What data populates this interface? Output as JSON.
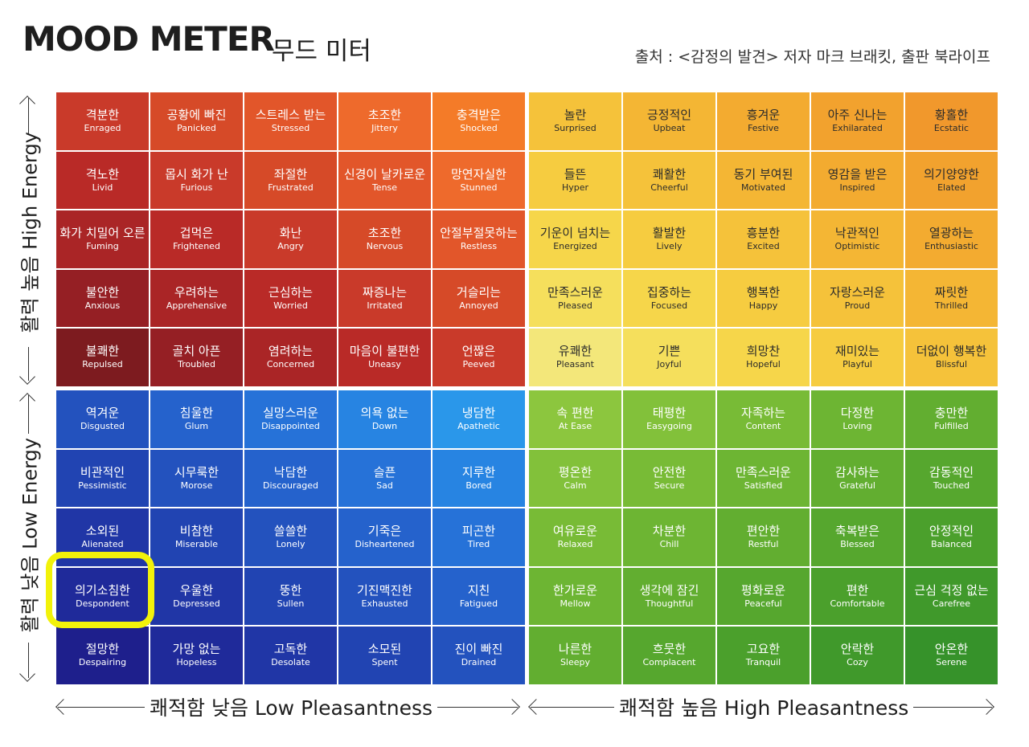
{
  "header": {
    "title": "MOOD METER",
    "subtitle": "무드 미터",
    "source": "출처 : <감정의 발견> 저자 마크 브래킷, 출판 북라이프"
  },
  "axes": {
    "high_energy": "활력 높음 High Energy",
    "low_energy": "활력 낮음 Low Energy",
    "low_pleasantness": "쾌적함 낮음 Low Pleasantness",
    "high_pleasantness": "쾌적함 높음 High Pleasantness"
  },
  "highlighted": "의기소침한 Despondent",
  "quadrants": {
    "red": {
      "colors": [
        "#7d1b1f",
        "#951f24",
        "#aa2526",
        "#b92a27",
        "#c93a2a",
        "#d64a28",
        "#e2562a",
        "#ee6a2c",
        "#f47b28"
      ],
      "rows": [
        [
          {
            "ko": "격분한",
            "en": "Enraged"
          },
          {
            "ko": "공황에 빠진",
            "en": "Panicked"
          },
          {
            "ko": "스트레스 받는",
            "en": "Stressed"
          },
          {
            "ko": "초조한",
            "en": "Jittery"
          },
          {
            "ko": "충격받은",
            "en": "Shocked"
          }
        ],
        [
          {
            "ko": "격노한",
            "en": "Livid"
          },
          {
            "ko": "몹시 화가 난",
            "en": "Furious"
          },
          {
            "ko": "좌절한",
            "en": "Frustrated"
          },
          {
            "ko": "신경이 날카로운",
            "en": "Tense"
          },
          {
            "ko": "망연자실한",
            "en": "Stunned"
          }
        ],
        [
          {
            "ko": "화가 치밀어 오른",
            "en": "Fuming"
          },
          {
            "ko": "겁먹은",
            "en": "Frightened"
          },
          {
            "ko": "화난",
            "en": "Angry"
          },
          {
            "ko": "초조한",
            "en": "Nervous"
          },
          {
            "ko": "안절부절못하는",
            "en": "Restless"
          }
        ],
        [
          {
            "ko": "불안한",
            "en": "Anxious"
          },
          {
            "ko": "우려하는",
            "en": "Apprehensive"
          },
          {
            "ko": "근심하는",
            "en": "Worried"
          },
          {
            "ko": "짜증나는",
            "en": "Irritated"
          },
          {
            "ko": "거슬리는",
            "en": "Annoyed"
          }
        ],
        [
          {
            "ko": "불쾌한",
            "en": "Repulsed"
          },
          {
            "ko": "골치 아픈",
            "en": "Troubled"
          },
          {
            "ko": "염려하는",
            "en": "Concerned"
          },
          {
            "ko": "마음이 불편한",
            "en": "Uneasy"
          },
          {
            "ko": "언짢은",
            "en": "Peeved"
          }
        ]
      ]
    },
    "yellow": {
      "colors": [
        "#f3e77a",
        "#f5df5c",
        "#f6d64a",
        "#f6cc40",
        "#f5c23a",
        "#f4b634",
        "#f3ab30",
        "#f2a22e",
        "#f1982c"
      ],
      "rows": [
        [
          {
            "ko": "놀란",
            "en": "Surprised"
          },
          {
            "ko": "긍정적인",
            "en": "Upbeat"
          },
          {
            "ko": "흥겨운",
            "en": "Festive"
          },
          {
            "ko": "아주 신나는",
            "en": "Exhilarated"
          },
          {
            "ko": "황홀한",
            "en": "Ecstatic"
          }
        ],
        [
          {
            "ko": "들뜬",
            "en": "Hyper"
          },
          {
            "ko": "쾌활한",
            "en": "Cheerful"
          },
          {
            "ko": "동기 부여된",
            "en": "Motivated"
          },
          {
            "ko": "영감을 받은",
            "en": "Inspired"
          },
          {
            "ko": "의기양양한",
            "en": "Elated"
          }
        ],
        [
          {
            "ko": "기운이 넘치는",
            "en": "Energized"
          },
          {
            "ko": "활발한",
            "en": "Lively"
          },
          {
            "ko": "흥분한",
            "en": "Excited"
          },
          {
            "ko": "낙관적인",
            "en": "Optimistic"
          },
          {
            "ko": "열광하는",
            "en": "Enthusiastic"
          }
        ],
        [
          {
            "ko": "만족스러운",
            "en": "Pleased"
          },
          {
            "ko": "집중하는",
            "en": "Focused"
          },
          {
            "ko": "행복한",
            "en": "Happy"
          },
          {
            "ko": "자랑스러운",
            "en": "Proud"
          },
          {
            "ko": "짜릿한",
            "en": "Thrilled"
          }
        ],
        [
          {
            "ko": "유쾌한",
            "en": "Pleasant"
          },
          {
            "ko": "기쁜",
            "en": "Joyful"
          },
          {
            "ko": "희망찬",
            "en": "Hopeful"
          },
          {
            "ko": "재미있는",
            "en": "Playful"
          },
          {
            "ko": "더없이 행복한",
            "en": "Blissful"
          }
        ]
      ]
    },
    "blue": {
      "colors": [
        "#1e1f8c",
        "#1f2a9a",
        "#2036a6",
        "#2144b2",
        "#2352be",
        "#2562cc",
        "#2672d8",
        "#2784e2",
        "#2a97ea"
      ],
      "rows": [
        [
          {
            "ko": "역겨운",
            "en": "Disgusted"
          },
          {
            "ko": "침울한",
            "en": "Glum"
          },
          {
            "ko": "실망스러운",
            "en": "Disappointed"
          },
          {
            "ko": "의욕 없는",
            "en": "Down"
          },
          {
            "ko": "냉담한",
            "en": "Apathetic"
          }
        ],
        [
          {
            "ko": "비관적인",
            "en": "Pessimistic"
          },
          {
            "ko": "시무룩한",
            "en": "Morose"
          },
          {
            "ko": "낙담한",
            "en": "Discouraged"
          },
          {
            "ko": "슬픈",
            "en": "Sad"
          },
          {
            "ko": "지루한",
            "en": "Bored"
          }
        ],
        [
          {
            "ko": "소외된",
            "en": "Alienated"
          },
          {
            "ko": "비참한",
            "en": "Miserable"
          },
          {
            "ko": "쓸쓸한",
            "en": "Lonely"
          },
          {
            "ko": "기죽은",
            "en": "Disheartened"
          },
          {
            "ko": "피곤한",
            "en": "Tired"
          }
        ],
        [
          {
            "ko": "의기소침한",
            "en": "Despondent"
          },
          {
            "ko": "우울한",
            "en": "Depressed"
          },
          {
            "ko": "뚱한",
            "en": "Sullen"
          },
          {
            "ko": "기진맥진한",
            "en": "Exhausted"
          },
          {
            "ko": "지친",
            "en": "Fatigued"
          }
        ],
        [
          {
            "ko": "절망한",
            "en": "Despairing"
          },
          {
            "ko": "가망 없는",
            "en": "Hopeless"
          },
          {
            "ko": "고독한",
            "en": "Desolate"
          },
          {
            "ko": "소모된",
            "en": "Spent"
          },
          {
            "ko": "진이 빠진",
            "en": "Drained"
          }
        ]
      ]
    },
    "green": {
      "colors": [
        "#8cc63e",
        "#82c13a",
        "#78bb36",
        "#6db533",
        "#62ae30",
        "#56a72e",
        "#4ba02c",
        "#40992b",
        "#36922a"
      ],
      "rows": [
        [
          {
            "ko": "속 편한",
            "en": "At Ease"
          },
          {
            "ko": "태평한",
            "en": "Easygoing"
          },
          {
            "ko": "자족하는",
            "en": "Content"
          },
          {
            "ko": "다정한",
            "en": "Loving"
          },
          {
            "ko": "충만한",
            "en": "Fulfilled"
          }
        ],
        [
          {
            "ko": "평온한",
            "en": "Calm"
          },
          {
            "ko": "안전한",
            "en": "Secure"
          },
          {
            "ko": "만족스러운",
            "en": "Satisfied"
          },
          {
            "ko": "감사하는",
            "en": "Grateful"
          },
          {
            "ko": "감동적인",
            "en": "Touched"
          }
        ],
        [
          {
            "ko": "여유로운",
            "en": "Relaxed"
          },
          {
            "ko": "차분한",
            "en": "Chill"
          },
          {
            "ko": "편안한",
            "en": "Restful"
          },
          {
            "ko": "축복받은",
            "en": "Blessed"
          },
          {
            "ko": "안정적인",
            "en": "Balanced"
          }
        ],
        [
          {
            "ko": "한가로운",
            "en": "Mellow"
          },
          {
            "ko": "생각에 잠긴",
            "en": "Thoughtful"
          },
          {
            "ko": "평화로운",
            "en": "Peaceful"
          },
          {
            "ko": "편한",
            "en": "Comfortable"
          },
          {
            "ko": "근심 걱정 없는",
            "en": "Carefree"
          }
        ],
        [
          {
            "ko": "나른한",
            "en": "Sleepy"
          },
          {
            "ko": "흐뭇한",
            "en": "Complacent"
          },
          {
            "ko": "고요한",
            "en": "Tranquil"
          },
          {
            "ko": "안락한",
            "en": "Cozy"
          },
          {
            "ko": "안온한",
            "en": "Serene"
          }
        ]
      ]
    }
  }
}
